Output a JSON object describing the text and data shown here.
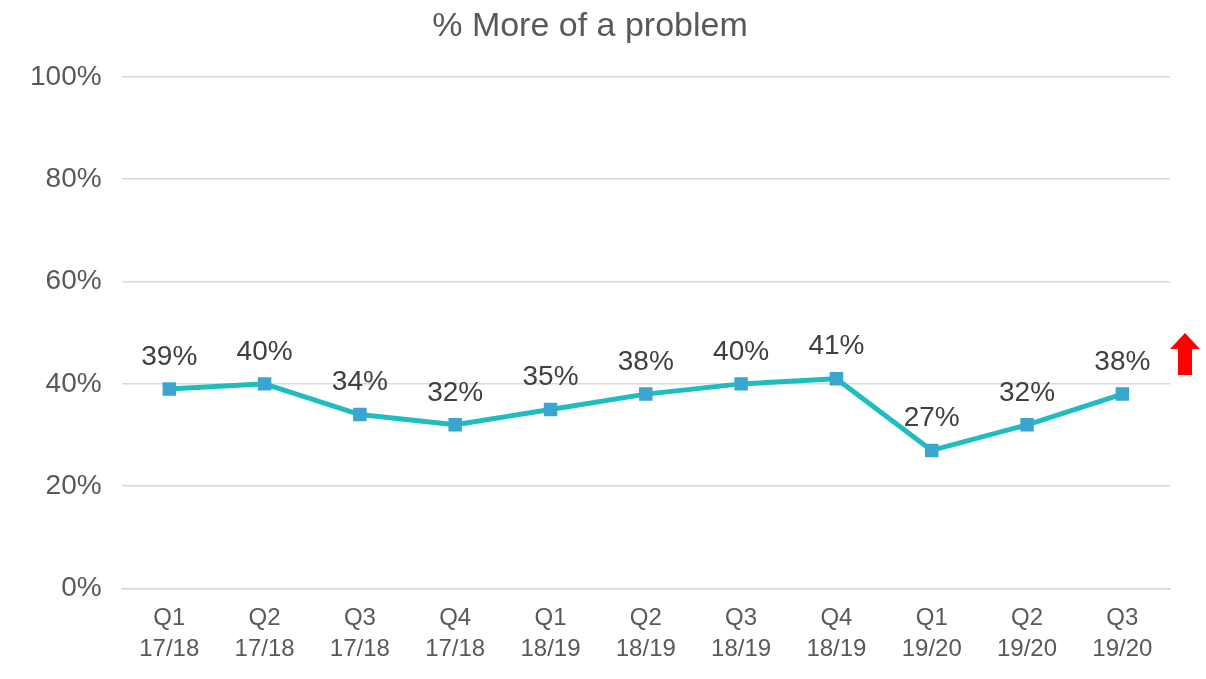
{
  "chart_data": {
    "type": "line",
    "title": "% More of a problem",
    "categories": [
      "Q1 17/18",
      "Q2 17/18",
      "Q3 17/18",
      "Q4 17/18",
      "Q1 18/19",
      "Q2 18/19",
      "Q3 18/19",
      "Q4 18/19",
      "Q1 19/20",
      "Q2 19/20",
      "Q3 19/20"
    ],
    "series": [
      {
        "color": "#1fbdbd",
        "values": [
          39,
          40,
          34,
          32,
          35,
          38,
          40,
          41,
          27,
          32,
          38
        ],
        "value_labels": [
          "39%",
          "40%",
          "34%",
          "32%",
          "35%",
          "38%",
          "40%",
          "41%",
          "27%",
          "32%",
          "38%"
        ]
      }
    ],
    "ylim": [
      0,
      100
    ],
    "yticks": [
      {
        "value": 0,
        "label": "0%"
      },
      {
        "value": 20,
        "label": "20%"
      },
      {
        "value": 40,
        "label": "40%"
      },
      {
        "value": 60,
        "label": "60%"
      },
      {
        "value": 80,
        "label": "80%"
      },
      {
        "value": 100,
        "label": "100%"
      }
    ],
    "grid": "y",
    "legend": false,
    "marker": "square",
    "line_style": "solid"
  }
}
